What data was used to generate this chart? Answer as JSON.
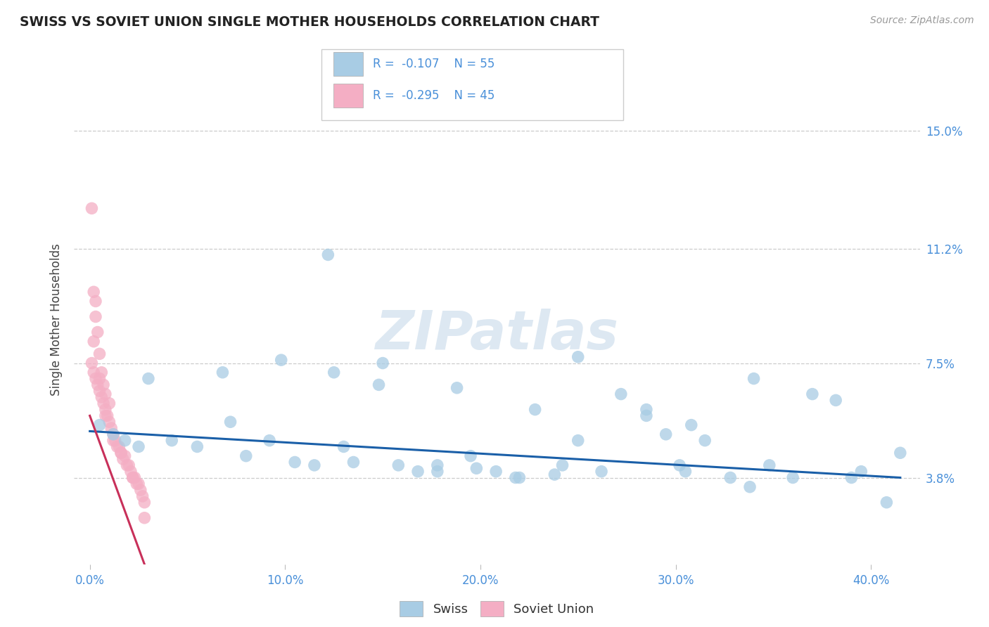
{
  "title": "SWISS VS SOVIET UNION SINGLE MOTHER HOUSEHOLDS CORRELATION CHART",
  "source": "Source: ZipAtlas.com",
  "ylabel": "Single Mother Households",
  "watermark": "ZIPatlas",
  "ytick_positions": [
    0.038,
    0.075,
    0.112,
    0.15
  ],
  "ytick_labels": [
    "3.8%",
    "7.5%",
    "11.2%",
    "15.0%"
  ],
  "xtick_positions": [
    0.0,
    0.1,
    0.2,
    0.3,
    0.4
  ],
  "xtick_labels": [
    "0.0%",
    "10.0%",
    "20.0%",
    "30.0%",
    "40.0%"
  ],
  "xlim": [
    -0.008,
    0.425
  ],
  "ylim": [
    0.01,
    0.168
  ],
  "blue_scatter_color": "#a8cce4",
  "pink_scatter_color": "#f4aec4",
  "blue_line_color": "#1a5fa8",
  "pink_line_color": "#c8305a",
  "title_color": "#222222",
  "axis_tick_color": "#4a90d9",
  "background_color": "#ffffff",
  "grid_color": "#cccccc",
  "blue_line_x0": 0.0,
  "blue_line_y0": 0.053,
  "blue_line_x1": 0.415,
  "blue_line_y1": 0.038,
  "pink_line_x0": 0.0,
  "pink_line_y0": 0.058,
  "pink_line_x1": 0.028,
  "pink_line_y1": 0.01,
  "swiss_x": [
    0.005,
    0.012,
    0.018,
    0.025,
    0.03,
    0.042,
    0.055,
    0.068,
    0.08,
    0.092,
    0.105,
    0.115,
    0.125,
    0.135,
    0.148,
    0.158,
    0.168,
    0.178,
    0.188,
    0.198,
    0.208,
    0.218,
    0.228,
    0.238,
    0.25,
    0.262,
    0.272,
    0.285,
    0.295,
    0.305,
    0.315,
    0.328,
    0.338,
    0.348,
    0.36,
    0.37,
    0.382,
    0.395,
    0.408,
    0.415,
    0.098,
    0.15,
    0.22,
    0.285,
    0.34,
    0.39,
    0.178,
    0.25,
    0.308,
    0.072,
    0.13,
    0.195,
    0.242,
    0.302,
    0.122
  ],
  "swiss_y": [
    0.055,
    0.052,
    0.05,
    0.048,
    0.07,
    0.05,
    0.048,
    0.072,
    0.045,
    0.05,
    0.043,
    0.042,
    0.072,
    0.043,
    0.068,
    0.042,
    0.04,
    0.04,
    0.067,
    0.041,
    0.04,
    0.038,
    0.06,
    0.039,
    0.077,
    0.04,
    0.065,
    0.06,
    0.052,
    0.04,
    0.05,
    0.038,
    0.035,
    0.042,
    0.038,
    0.065,
    0.063,
    0.04,
    0.03,
    0.046,
    0.076,
    0.075,
    0.038,
    0.058,
    0.07,
    0.038,
    0.042,
    0.05,
    0.055,
    0.056,
    0.048,
    0.045,
    0.042,
    0.042,
    0.11
  ],
  "soviet_x": [
    0.001,
    0.001,
    0.002,
    0.002,
    0.003,
    0.003,
    0.004,
    0.004,
    0.005,
    0.005,
    0.006,
    0.006,
    0.007,
    0.007,
    0.008,
    0.008,
    0.009,
    0.01,
    0.01,
    0.011,
    0.012,
    0.013,
    0.014,
    0.015,
    0.016,
    0.017,
    0.018,
    0.019,
    0.02,
    0.021,
    0.022,
    0.023,
    0.024,
    0.025,
    0.026,
    0.027,
    0.028,
    0.002,
    0.005,
    0.008,
    0.012,
    0.016,
    0.022,
    0.028,
    0.003
  ],
  "soviet_y": [
    0.075,
    0.125,
    0.072,
    0.098,
    0.07,
    0.09,
    0.068,
    0.085,
    0.066,
    0.078,
    0.064,
    0.072,
    0.062,
    0.068,
    0.06,
    0.065,
    0.058,
    0.056,
    0.062,
    0.054,
    0.052,
    0.05,
    0.048,
    0.048,
    0.046,
    0.044,
    0.045,
    0.042,
    0.042,
    0.04,
    0.038,
    0.038,
    0.036,
    0.036,
    0.034,
    0.032,
    0.03,
    0.082,
    0.07,
    0.058,
    0.05,
    0.046,
    0.038,
    0.025,
    0.095
  ]
}
